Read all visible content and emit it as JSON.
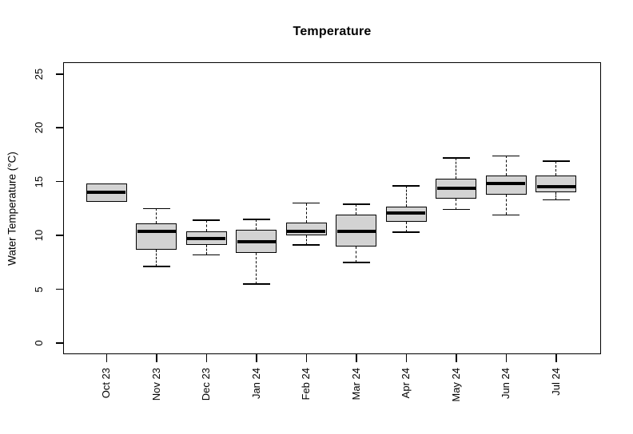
{
  "chart_data": {
    "type": "boxplot",
    "title": "Temperature",
    "xlabel": "",
    "ylabel": "Water Temperature (°C)",
    "ylim": [
      0,
      25
    ],
    "yticks": [
      0,
      5,
      10,
      15,
      20,
      25
    ],
    "categories": [
      "Oct 23",
      "Nov 23",
      "Dec 23",
      "Jan 24",
      "Feb 24",
      "Mar 24",
      "Apr 24",
      "May 24",
      "Jun 24",
      "Jul 24"
    ],
    "grid": false,
    "legend": null,
    "colors": {
      "box_fill": "#d3d3d3",
      "line": "#000000",
      "background": "#ffffff"
    },
    "boxes": [
      {
        "category": "Oct 23",
        "min": 13.1,
        "q1": 13.1,
        "median": 14.0,
        "q3": 14.8,
        "max": 14.8
      },
      {
        "category": "Nov 23",
        "min": 7.1,
        "q1": 8.7,
        "median": 10.4,
        "q3": 11.1,
        "max": 12.5
      },
      {
        "category": "Dec 23",
        "min": 8.2,
        "q1": 9.1,
        "median": 9.7,
        "q3": 10.4,
        "max": 11.4
      },
      {
        "category": "Jan 24",
        "min": 5.5,
        "q1": 8.4,
        "median": 9.4,
        "q3": 10.5,
        "max": 11.5
      },
      {
        "category": "Feb 24",
        "min": 9.1,
        "q1": 10.0,
        "median": 10.4,
        "q3": 11.2,
        "max": 13.0
      },
      {
        "category": "Mar 24",
        "min": 7.5,
        "q1": 9.0,
        "median": 10.4,
        "q3": 11.9,
        "max": 12.9
      },
      {
        "category": "Apr 24",
        "min": 10.3,
        "q1": 11.3,
        "median": 12.1,
        "q3": 12.7,
        "max": 14.6
      },
      {
        "category": "May 24",
        "min": 12.4,
        "q1": 13.4,
        "median": 14.4,
        "q3": 15.3,
        "max": 17.2
      },
      {
        "category": "Jun 24",
        "min": 11.9,
        "q1": 13.8,
        "median": 14.8,
        "q3": 15.6,
        "max": 17.4
      },
      {
        "category": "Jul 24",
        "min": 13.3,
        "q1": 14.0,
        "median": 14.5,
        "q3": 15.6,
        "max": 16.9
      }
    ]
  }
}
